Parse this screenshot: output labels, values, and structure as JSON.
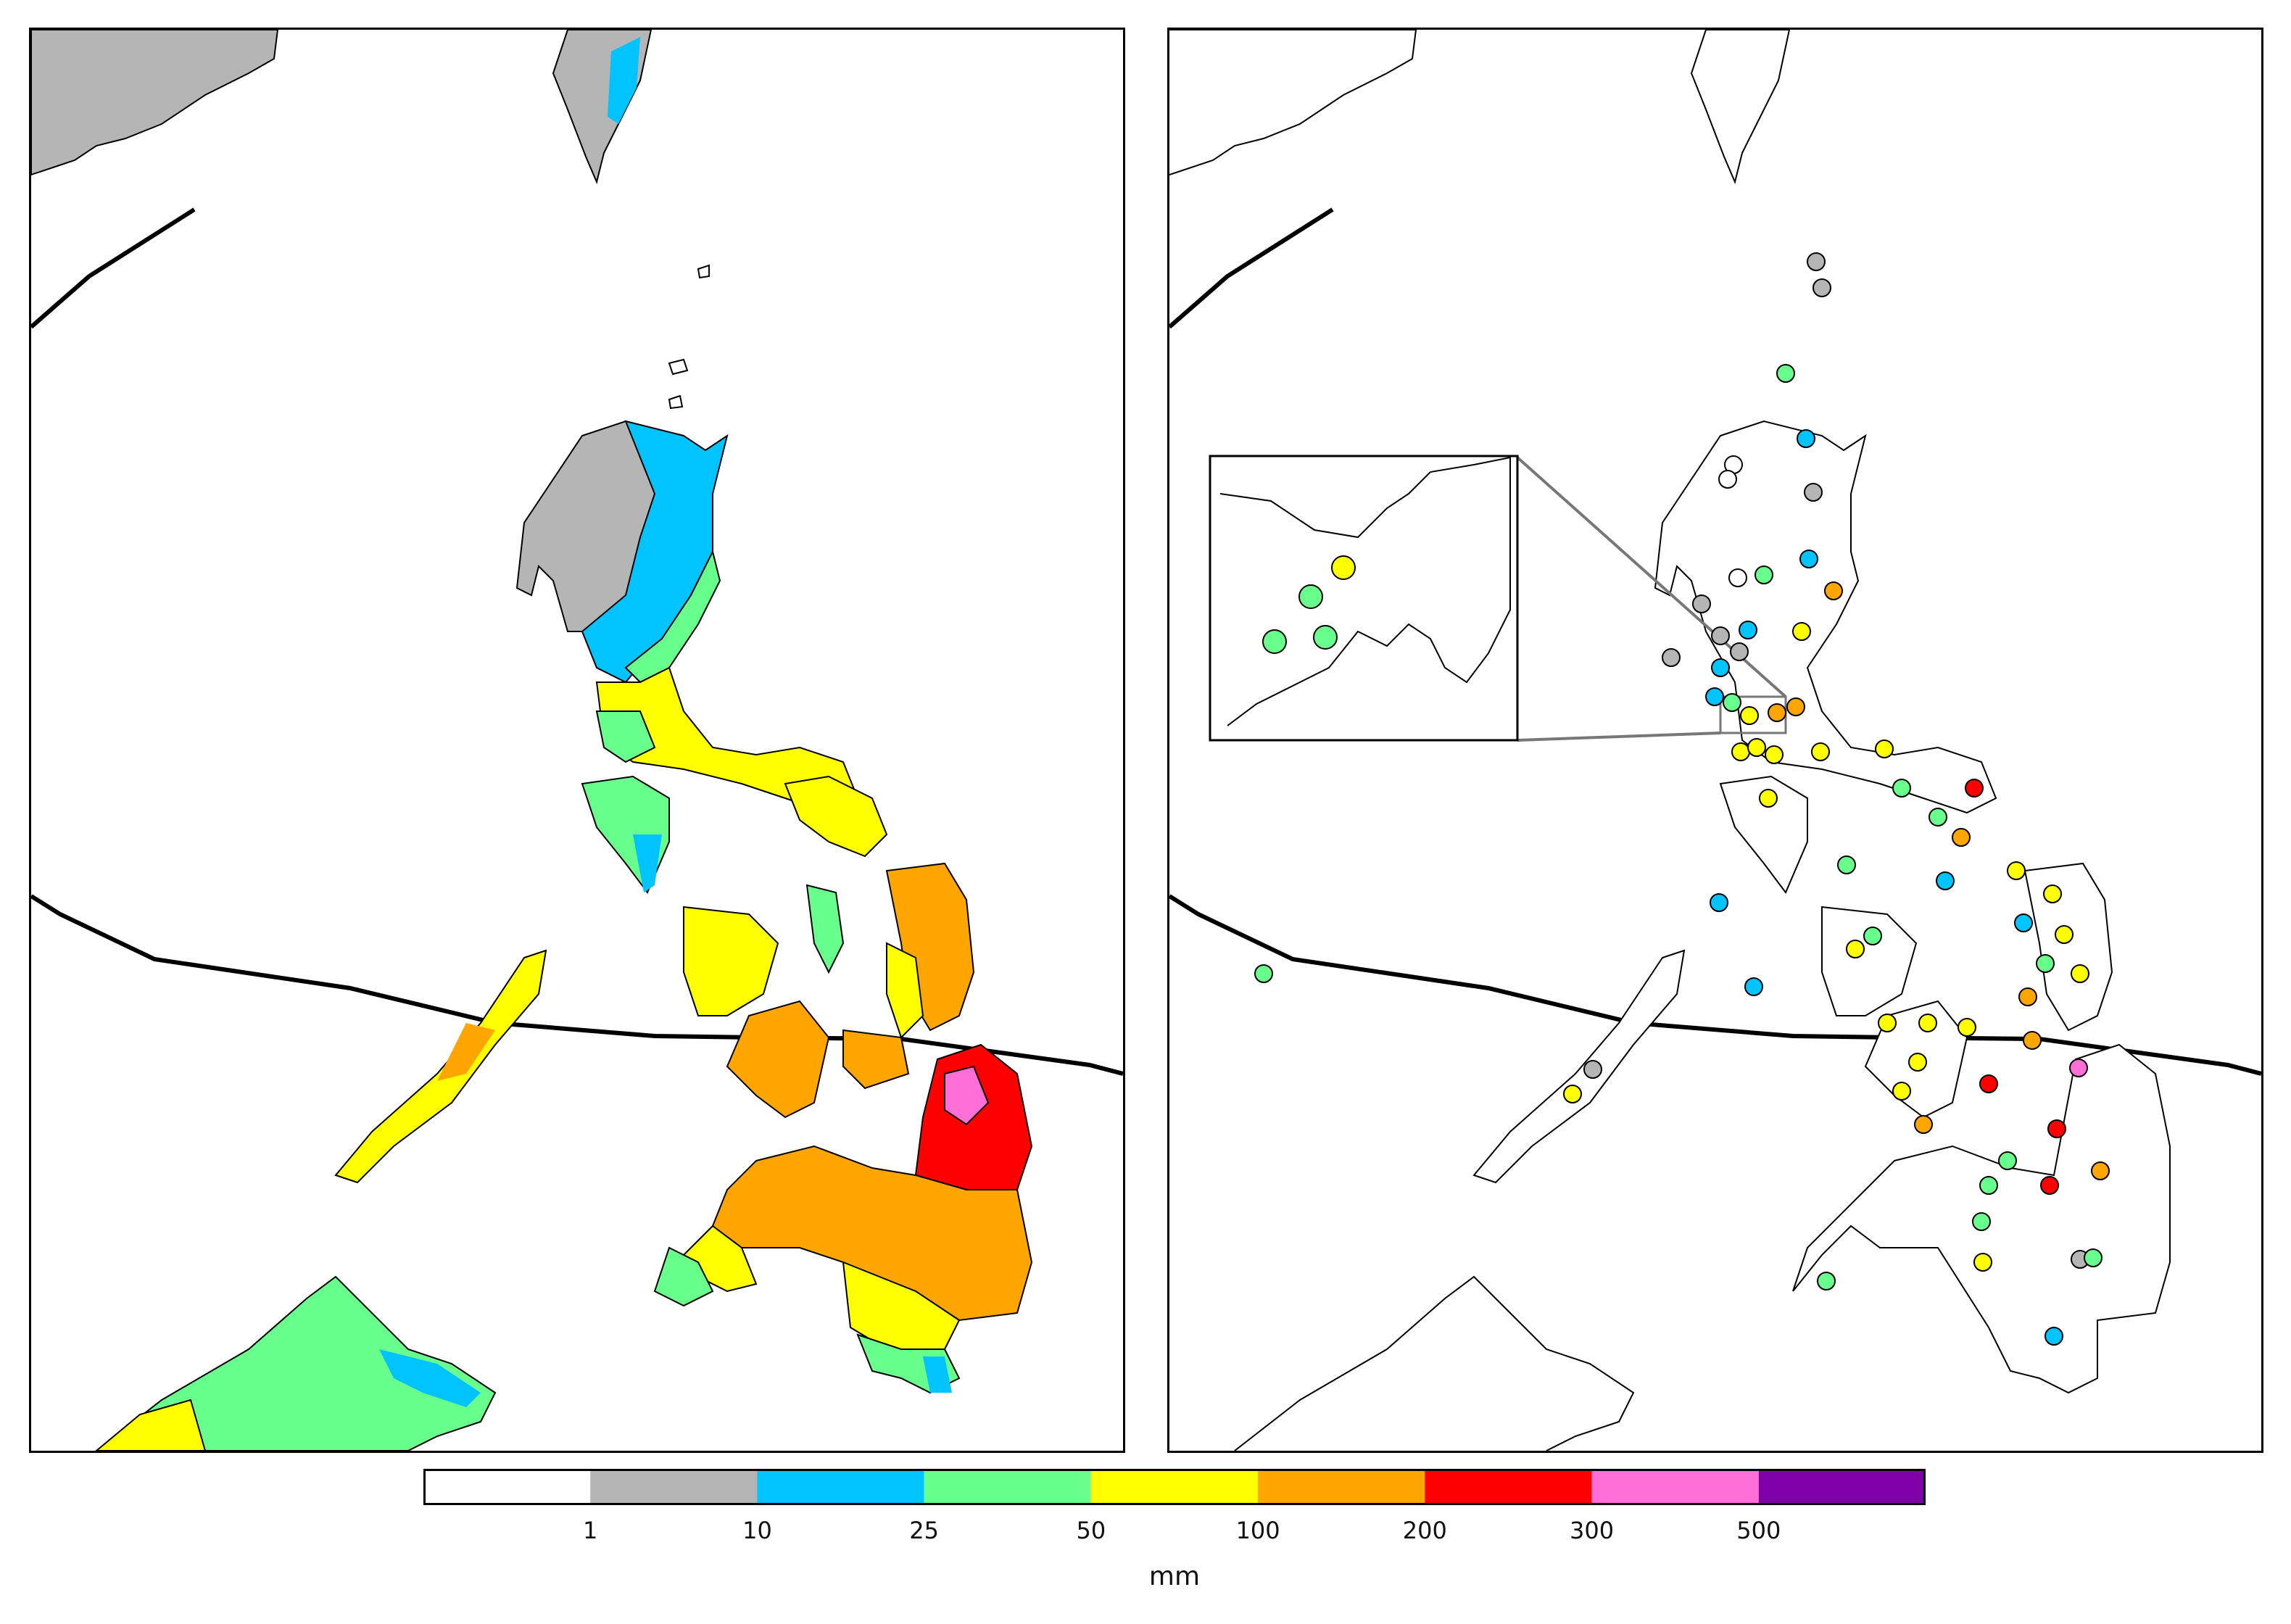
{
  "colorbar": {
    "unit": "mm",
    "ticks": [
      "1",
      "10",
      "25",
      "50",
      "100",
      "200",
      "300",
      "500"
    ],
    "colors": [
      "#ffffff",
      "#b5b5b5",
      "#00c3ff",
      "#69ff8c",
      "#ffff00",
      "#ffa500",
      "#ff0000",
      "#ff6ed7",
      "#7f00a8"
    ]
  },
  "left_panel": {
    "type": "gridded-rainfall-map"
  },
  "right_panel": {
    "type": "station-rainfall-map",
    "inset": "zoomed-region"
  }
}
